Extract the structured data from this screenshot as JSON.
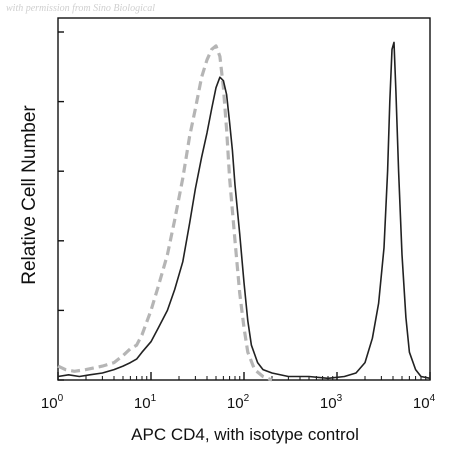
{
  "watermark": "with permission from Sino Biological",
  "chart_data": {
    "type": "line",
    "xlabel": "APC CD4, with isotype control",
    "ylabel": "Relative Cell Number",
    "x_scale": "log",
    "xlim": [
      1,
      10000
    ],
    "ylim": [
      0,
      1
    ],
    "x_ticks": [
      {
        "value": 1,
        "base": "10",
        "exp": "0"
      },
      {
        "value": 10,
        "base": "10",
        "exp": "1"
      },
      {
        "value": 100,
        "base": "10",
        "exp": "2"
      },
      {
        "value": 1000,
        "base": "10",
        "exp": "3"
      },
      {
        "value": 10000,
        "base": "10",
        "exp": "4"
      }
    ],
    "y_ticks": [
      0,
      0.2,
      0.4,
      0.6,
      0.8,
      1.0
    ],
    "grid": false,
    "legend": "none",
    "series": [
      {
        "style": "solid",
        "color": "#222222",
        "x": [
          1,
          1.3,
          1.7,
          2.2,
          3,
          4,
          5,
          6,
          7,
          8,
          10,
          12,
          15,
          18,
          22,
          26,
          30,
          35,
          40,
          45,
          50,
          55,
          60,
          65,
          70,
          75,
          80,
          90,
          100,
          110,
          120,
          140,
          160,
          200,
          300,
          500,
          800,
          1200,
          1600,
          2000,
          2400,
          2800,
          3200,
          3500,
          3700,
          3900,
          4100,
          4300,
          4600,
          5000,
          5500,
          6000,
          7000,
          8000,
          10000
        ],
        "y": [
          0.01,
          0.015,
          0.01,
          0.015,
          0.02,
          0.03,
          0.04,
          0.05,
          0.06,
          0.08,
          0.11,
          0.15,
          0.2,
          0.26,
          0.34,
          0.45,
          0.55,
          0.64,
          0.71,
          0.78,
          0.84,
          0.87,
          0.86,
          0.82,
          0.74,
          0.66,
          0.56,
          0.42,
          0.28,
          0.17,
          0.1,
          0.05,
          0.03,
          0.02,
          0.01,
          0.01,
          0.005,
          0.01,
          0.02,
          0.05,
          0.12,
          0.22,
          0.38,
          0.6,
          0.8,
          0.95,
          0.97,
          0.83,
          0.6,
          0.36,
          0.18,
          0.08,
          0.03,
          0.01,
          0.005
        ]
      },
      {
        "style": "dashed",
        "color": "#b5b5b5",
        "x": [
          1,
          1.2,
          1.5,
          2,
          3,
          4,
          5,
          6,
          7,
          8,
          10,
          12,
          15,
          18,
          22,
          26,
          30,
          35,
          40,
          45,
          50,
          55,
          60,
          65,
          70,
          80,
          90,
          100,
          110,
          130,
          160,
          200
        ],
        "y": [
          0.04,
          0.03,
          0.025,
          0.03,
          0.04,
          0.05,
          0.07,
          0.09,
          0.1,
          0.13,
          0.2,
          0.27,
          0.36,
          0.46,
          0.58,
          0.7,
          0.78,
          0.87,
          0.92,
          0.95,
          0.96,
          0.93,
          0.84,
          0.72,
          0.58,
          0.4,
          0.25,
          0.15,
          0.08,
          0.03,
          0.01,
          0.0
        ]
      }
    ]
  }
}
